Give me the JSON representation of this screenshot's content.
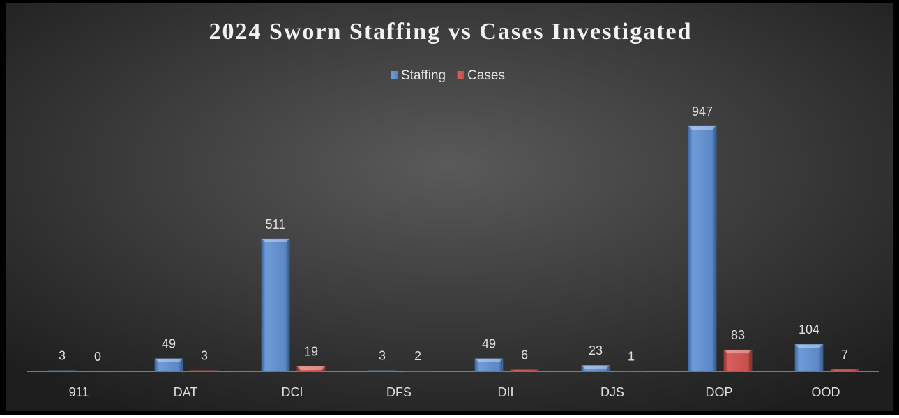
{
  "chart_data": {
    "type": "bar",
    "title": "2024 Sworn Staffing vs Cases Investigated",
    "categories": [
      "911",
      "DAT",
      "DCI",
      "DFS",
      "DII",
      "DJS",
      "DOP",
      "OOD"
    ],
    "series": [
      {
        "name": "Staffing",
        "color": "#4f81bd",
        "values": [
          3,
          49,
          511,
          3,
          49,
          23,
          947,
          104
        ]
      },
      {
        "name": "Cases",
        "color": "#c0504d",
        "values": [
          0,
          3,
          19,
          2,
          6,
          1,
          83,
          7
        ]
      }
    ],
    "legend": "top"
  }
}
